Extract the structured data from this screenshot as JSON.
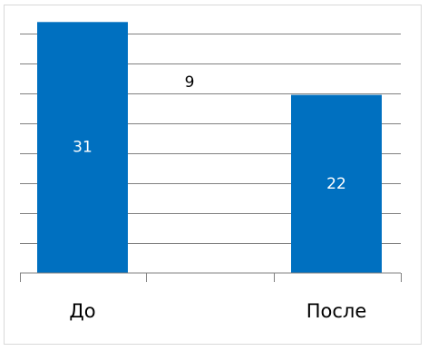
{
  "chart_data": {
    "type": "bar",
    "categories": [
      "До",
      "После"
    ],
    "values": [
      31,
      22
    ],
    "data_labels": [
      "31",
      "22"
    ],
    "annotation": "9",
    "bar_color": "#0070c0",
    "grid_color": "#808080",
    "label_color_inside": "#ffffff",
    "label_color_outside": "#000000",
    "ylim": [
      0,
      34
    ],
    "gridlines": true,
    "legend": "none"
  }
}
